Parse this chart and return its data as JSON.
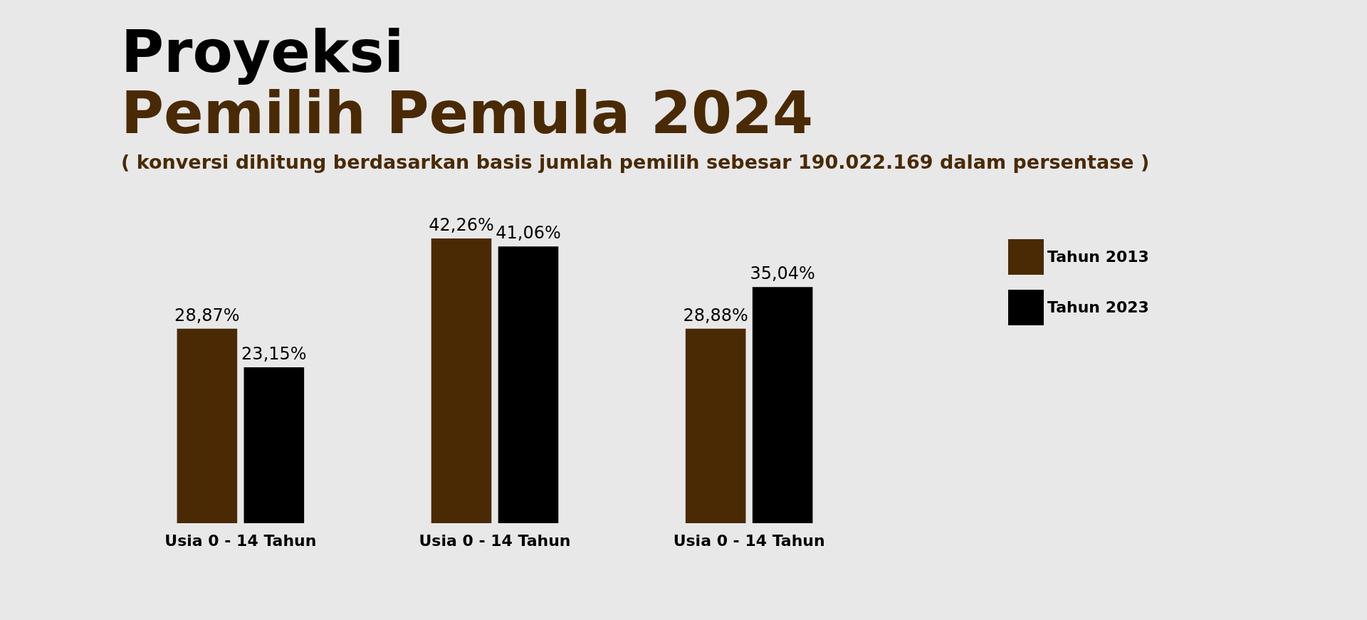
{
  "chart_data": {
    "type": "bar",
    "title": "Proyeksi",
    "subtitle": "Pemilih Pemula 2024",
    "annotations": [
      "( konversi dihitung berdasarkan basis jumlah pemilih sebesar 190.022.169 dalam persentase )"
    ],
    "categories": [
      "Usia 0 - 14 Tahun",
      "Usia 0 - 14 Tahun",
      "Usia 0 - 14 Tahun"
    ],
    "series": [
      {
        "name": "Tahun 2013",
        "color": "#4a2a04",
        "values": [
          28.87,
          42.26,
          28.88
        ],
        "value_labels": [
          "28,87%",
          "42,26%",
          "28,88%"
        ]
      },
      {
        "name": "Tahun 2023",
        "color": "#000000",
        "values": [
          23.15,
          41.06,
          35.04
        ],
        "value_labels": [
          "23,15%",
          "41,06%",
          "35,04%"
        ]
      }
    ],
    "legend": "right"
  }
}
